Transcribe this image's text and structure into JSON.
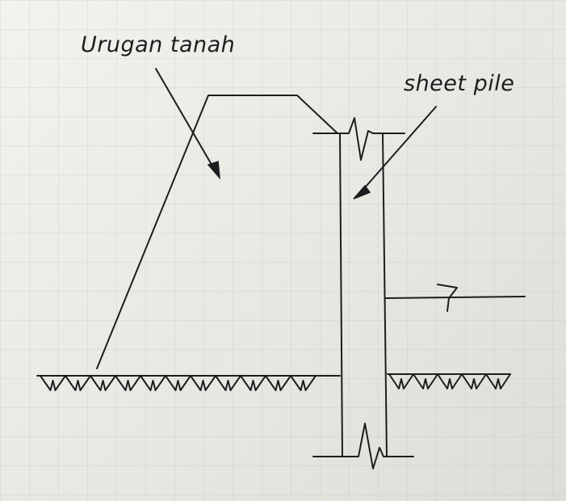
{
  "labels": {
    "fill": "Urugan tanah",
    "sheet_pile": "sheet pile"
  },
  "colors": {
    "ink": "#1d1d1f",
    "paper": "#ecebe6"
  }
}
